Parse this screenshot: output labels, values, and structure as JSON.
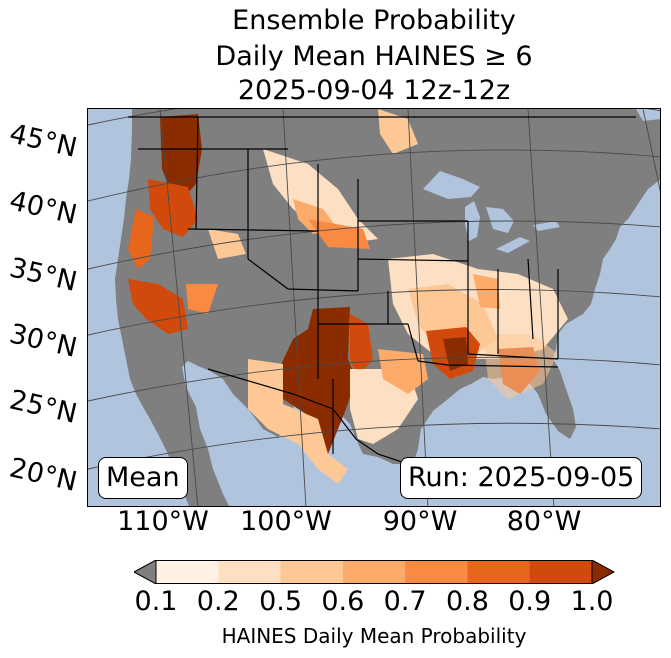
{
  "title": {
    "line1": "Ensemble Probability",
    "line2": "Daily Mean HAINES ≥ 6",
    "line3": "2025-09-04 12z-12z"
  },
  "lat_labels": [
    "45°N",
    "40°N",
    "35°N",
    "30°N",
    "25°N",
    "20°N"
  ],
  "lon_labels": [
    "110°W",
    "100°W",
    "90°W",
    "80°W"
  ],
  "badges": {
    "stat": "Mean",
    "run": "Run: 2025-09-05"
  },
  "colorbar": {
    "ticks": [
      "0.1",
      "0.2",
      "0.5",
      "0.6",
      "0.7",
      "0.8",
      "0.9",
      "1.0"
    ],
    "colors": [
      "#fff1e4",
      "#fde0c4",
      "#fdc896",
      "#fdab6a",
      "#f88a42",
      "#e8661c",
      "#d14a0b"
    ],
    "under_color": "#7f7f7f",
    "over_color": "#8b2c00",
    "label": "HAINES Daily Mean Probability"
  },
  "map_colors": {
    "ocean": "#b0c4de",
    "land": "#7f7f7f",
    "borders": "#000000",
    "gridlines": "#4a4a4a"
  }
}
